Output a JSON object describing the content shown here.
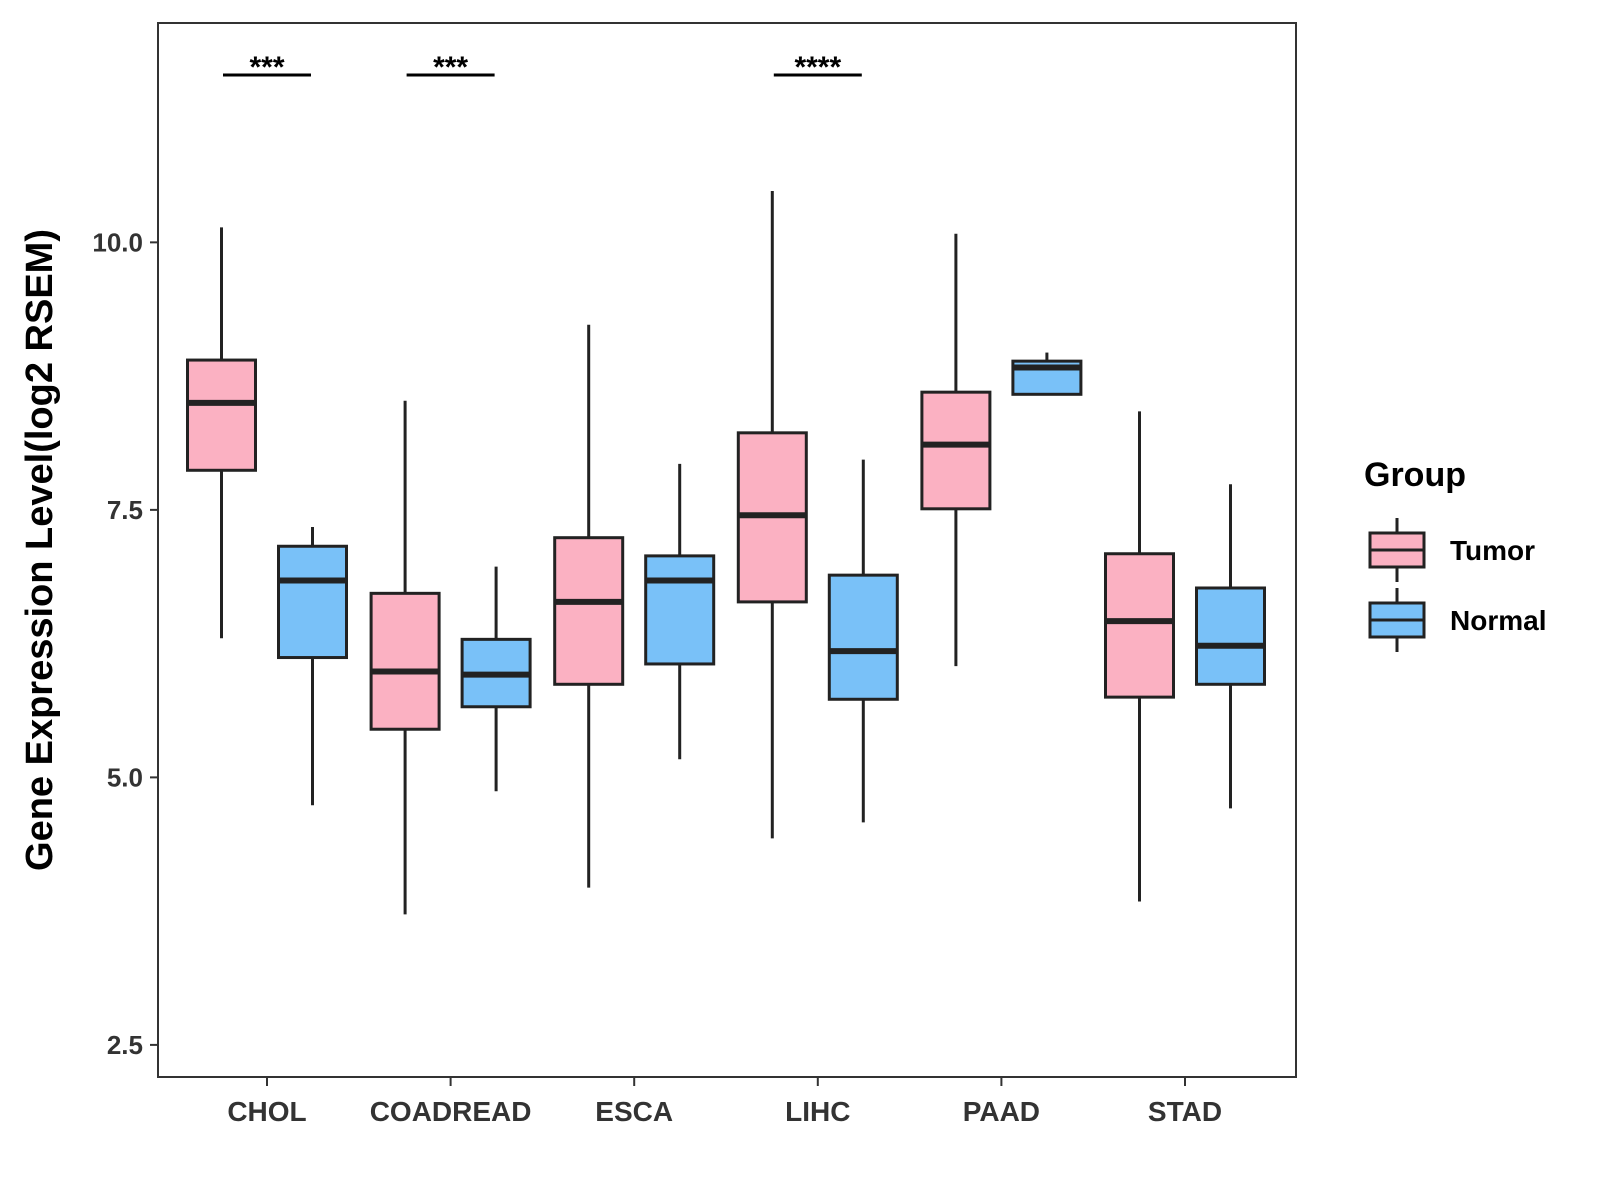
{
  "chart_data": {
    "type": "boxplot",
    "title": "",
    "xlabel": "",
    "ylabel": "Gene Expression Level(log2 RSEM)",
    "ylim": [
      2.2,
      12.05
    ],
    "yticks": [
      2.5,
      5.0,
      7.5,
      10.0
    ],
    "ytick_labels": [
      "2.5",
      "5.0",
      "7.5",
      "10.0"
    ],
    "categories": [
      "CHOL",
      "COADREAD",
      "ESCA",
      "LIHC",
      "PAAD",
      "STAD"
    ],
    "legend": {
      "title": "Group",
      "position": "right"
    },
    "series": [
      {
        "name": "Tumor",
        "color": "#FBB1C2",
        "boxes": [
          {
            "min": 6.3,
            "q1": 7.87,
            "median": 8.5,
            "q3": 8.9,
            "max": 10.14
          },
          {
            "min": 3.72,
            "q1": 5.45,
            "median": 5.99,
            "q3": 6.72,
            "max": 8.52
          },
          {
            "min": 3.97,
            "q1": 5.87,
            "median": 6.64,
            "q3": 7.24,
            "max": 9.23
          },
          {
            "min": 4.43,
            "q1": 6.64,
            "median": 7.45,
            "q3": 8.22,
            "max": 10.48
          },
          {
            "min": 6.04,
            "q1": 7.51,
            "median": 8.11,
            "q3": 8.6,
            "max": 10.08
          },
          {
            "min": 3.84,
            "q1": 5.75,
            "median": 6.46,
            "q3": 7.09,
            "max": 8.42
          }
        ]
      },
      {
        "name": "Normal",
        "color": "#79C1F8",
        "boxes": [
          {
            "min": 4.74,
            "q1": 6.12,
            "median": 6.84,
            "q3": 7.16,
            "max": 7.34
          },
          {
            "min": 4.87,
            "q1": 5.66,
            "median": 5.96,
            "q3": 6.29,
            "max": 6.97
          },
          {
            "min": 5.17,
            "q1": 6.06,
            "median": 6.84,
            "q3": 7.07,
            "max": 7.93
          },
          {
            "min": 4.58,
            "q1": 5.73,
            "median": 6.18,
            "q3": 6.89,
            "max": 7.97
          },
          {
            "min": 8.58,
            "q1": 8.58,
            "median": 8.83,
            "q3": 8.89,
            "max": 8.97
          },
          {
            "min": 4.71,
            "q1": 5.87,
            "median": 6.23,
            "q3": 6.77,
            "max": 7.74
          }
        ]
      }
    ],
    "annotations": [
      {
        "category": "CHOL",
        "label": "***"
      },
      {
        "category": "COADREAD",
        "label": "***"
      },
      {
        "category": "LIHC",
        "label": "****"
      }
    ]
  }
}
